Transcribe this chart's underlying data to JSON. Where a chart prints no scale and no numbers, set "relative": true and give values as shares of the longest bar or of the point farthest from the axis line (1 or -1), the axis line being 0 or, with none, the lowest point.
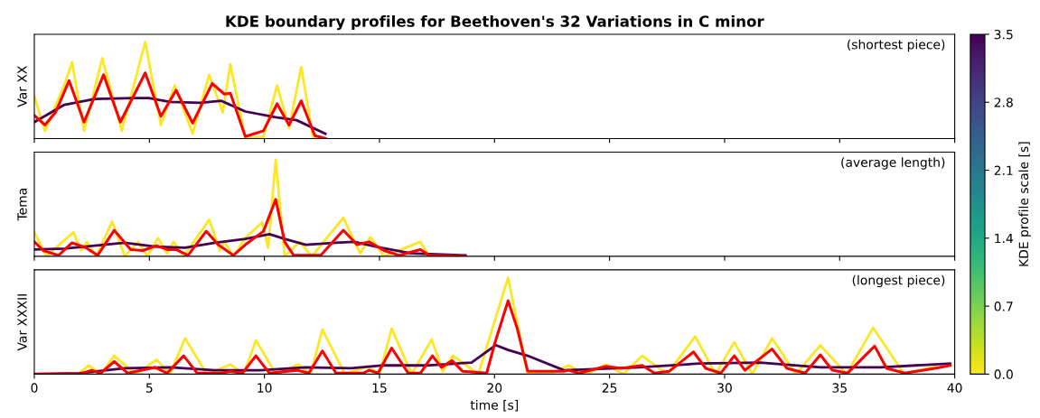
{
  "chart_data": [
    {
      "type": "line",
      "title": "KDE boundary profiles for Beethoven's 32 Variations in C minor",
      "ylabel": "Var XX",
      "relative": true,
      "xlim": [
        0,
        40
      ],
      "xticks": [
        0,
        5,
        10,
        15,
        20,
        25,
        30,
        35,
        40
      ],
      "tick_labels": false,
      "annotations": [
        "(shortest piece)"
      ],
      "clabel": "KDE profile scale [s]",
      "clim": [
        0,
        3.5
      ],
      "cticks": [
        {
          "value": 0,
          "label": "0.0"
        },
        {
          "value": 0.7,
          "label": "0.7"
        },
        {
          "value": 1.4,
          "label": "1.4"
        },
        {
          "value": 2.1,
          "label": "2.1"
        },
        {
          "value": 2.8,
          "label": "2.8"
        },
        {
          "value": 3.5,
          "label": "3.5"
        }
      ],
      "series": [
        {
          "color": "#fde725",
          "x": [
            0,
            0.46,
            1.3,
            1.64,
            2.16,
            2.95,
            3.8,
            4.82,
            5.5,
            6.1,
            6.88,
            7.6,
            8.19,
            8.52,
            9.17,
            9.96,
            10.55,
            11.07,
            11.6,
            12.12,
            12.65
          ],
          "values": [
            0.44,
            0.08,
            0.55,
            0.79,
            0.08,
            0.83,
            0.08,
            1.0,
            0.14,
            0.55,
            0.05,
            0.66,
            0.27,
            0.77,
            0,
            0.02,
            0.55,
            0.11,
            0.74,
            0,
            0
          ]
        },
        {
          "color": "#440154",
          "x": [
            0,
            1.31,
            2.62,
            4.33,
            4.98,
            5.9,
            7.21,
            8.13,
            9.17,
            10.49,
            11.4,
            12.65
          ],
          "values": [
            0.17,
            0.35,
            0.41,
            0.42,
            0.42,
            0.38,
            0.37,
            0.39,
            0.28,
            0.22,
            0.19,
            0.05
          ]
        },
        {
          "color": "#ff0000",
          "x": [
            0,
            0.46,
            0.92,
            1.51,
            2.16,
            3.01,
            3.74,
            4.82,
            5.5,
            6.16,
            6.88,
            7.73,
            8.26,
            8.52,
            9.17,
            9.7,
            9.96,
            10.55,
            11.07,
            11.6,
            12.19,
            12.65
          ],
          "values": [
            0.24,
            0.14,
            0.27,
            0.6,
            0.17,
            0.66,
            0.17,
            0.68,
            0.23,
            0.5,
            0.16,
            0.57,
            0.46,
            0.47,
            0.02,
            0.06,
            0.08,
            0.36,
            0.14,
            0.39,
            0.03,
            0
          ]
        }
      ]
    },
    {
      "type": "line",
      "ylabel": "Tema",
      "relative": true,
      "xlim": [
        0,
        40
      ],
      "xticks": [
        0,
        5,
        10,
        15,
        20,
        25,
        30,
        35,
        40
      ],
      "tick_labels": false,
      "annotations": [
        "(average length)"
      ],
      "series": [
        {
          "color": "#fde725",
          "x": [
            0,
            0.52,
            1.7,
            2.03,
            2.29,
            2.69,
            3.38,
            3.93,
            4.52,
            4.91,
            5.37,
            5.77,
            6.05,
            6.49,
            7.6,
            8.06,
            8.26,
            8.65,
            9.17,
            9.9,
            10.16,
            10.49,
            10.88,
            11.53,
            12.06,
            13.43,
            14.16,
            14.61,
            15.2,
            16.78,
            17.17,
            18.74
          ],
          "values": [
            0.25,
            0,
            0.25,
            0.06,
            0.15,
            0,
            0.36,
            0,
            0.15,
            0,
            0.19,
            0.03,
            0.15,
            0,
            0.38,
            0.06,
            0.15,
            0,
            0.19,
            0.35,
            0.09,
            1.0,
            0,
            0.15,
            0,
            0.4,
            0.03,
            0.2,
            0,
            0.15,
            0,
            0
          ]
        },
        {
          "color": "#440154",
          "x": [
            0,
            1.31,
            2.62,
            3.93,
            5.24,
            6.55,
            7.86,
            9.17,
            10.22,
            10.88,
            11.8,
            13.11,
            13.89,
            15.07,
            16.38,
            18.74
          ],
          "values": [
            0.07,
            0.08,
            0.11,
            0.14,
            0.1,
            0.09,
            0.14,
            0.18,
            0.23,
            0.18,
            0.12,
            0.14,
            0.15,
            0.09,
            0.03,
            0.01
          ]
        },
        {
          "color": "#ff0000",
          "x": [
            0,
            0.39,
            1.05,
            1.64,
            2.23,
            2.75,
            3.47,
            4.19,
            4.72,
            5.31,
            5.77,
            6.16,
            6.68,
            7.47,
            7.99,
            8.65,
            9.17,
            9.96,
            10.49,
            10.88,
            11.27,
            12.45,
            13.43,
            14.02,
            14.55,
            15.2,
            15.86,
            16.78,
            17.17,
            18.74
          ],
          "values": [
            0.15,
            0.06,
            0.01,
            0.14,
            0.09,
            0.01,
            0.27,
            0.07,
            0.06,
            0.11,
            0.07,
            0.07,
            0.01,
            0.26,
            0.12,
            0.01,
            0.12,
            0.26,
            0.59,
            0.15,
            0.01,
            0.01,
            0.27,
            0.12,
            0.15,
            0.06,
            0.01,
            0.07,
            0.01,
            0
          ]
        }
      ]
    },
    {
      "type": "line",
      "ylabel": "Var XXXII",
      "xlabel": "time [s]",
      "relative": true,
      "xlim": [
        0,
        40
      ],
      "xticks": [
        0,
        5,
        10,
        15,
        20,
        25,
        30,
        35,
        40
      ],
      "tick_labels": "x",
      "annotations": [
        "(longest piece)"
      ],
      "series": [
        {
          "color": "#fde725",
          "x": [
            0,
            1.9,
            2.36,
            2.9,
            3.47,
            4.4,
            5.31,
            5.9,
            6.55,
            7.5,
            8.52,
            9.1,
            9.63,
            10.5,
            11.47,
            12.0,
            12.52,
            13.5,
            14.48,
            15.0,
            15.53,
            16.4,
            17.27,
            17.75,
            18.19,
            19.3,
            20.59,
            21.44,
            22.4,
            23.21,
            24.0,
            24.85,
            25.6,
            26.42,
            27.5,
            28.72,
            29.6,
            30.42,
            31.2,
            32.06,
            33.1,
            34.16,
            35.3,
            36.45,
            37.8,
            39.14
          ],
          "values": [
            0,
            0,
            0.09,
            0,
            0.19,
            0,
            0.15,
            0,
            0.37,
            0,
            0.1,
            0,
            0.35,
            0,
            0.1,
            0,
            0.46,
            0,
            0.08,
            0,
            0.47,
            0,
            0.36,
            0.03,
            0.19,
            0,
            1.0,
            0,
            0,
            0.09,
            0,
            0.1,
            0,
            0.19,
            0,
            0.39,
            0,
            0.33,
            0,
            0.37,
            0,
            0.3,
            0,
            0.48,
            0,
            0.08
          ]
        },
        {
          "color": "#440154",
          "x": [
            0,
            1.97,
            3.93,
            5.9,
            7.86,
            9.83,
            11.8,
            13.76,
            15.07,
            17.04,
            19.0,
            20.05,
            20.59,
            21.44,
            23.02,
            26.29,
            28.91,
            31.54,
            34.16,
            36.78,
            39.8
          ],
          "values": [
            0,
            0.01,
            0.06,
            0.07,
            0.04,
            0.04,
            0.07,
            0.06,
            0.09,
            0.09,
            0.12,
            0.3,
            0.25,
            0.19,
            0.04,
            0.07,
            0.11,
            0.12,
            0.07,
            0.07,
            0.11
          ]
        },
        {
          "color": "#ff0000",
          "x": [
            0,
            1.97,
            2.49,
            2.88,
            3.47,
            4.06,
            5.24,
            5.77,
            6.49,
            7.08,
            8.13,
            8.52,
            9.04,
            9.63,
            10.22,
            11.4,
            11.93,
            12.52,
            13.11,
            14.29,
            14.55,
            14.94,
            15.53,
            16.25,
            16.78,
            17.3,
            17.69,
            18.15,
            18.61,
            19.66,
            20.0,
            20.59,
            20.99,
            21.44,
            23.02,
            23.21,
            23.67,
            24.85,
            25.51,
            26.42,
            26.95,
            27.6,
            28.65,
            29.18,
            29.83,
            30.42,
            30.88,
            32.06,
            32.71,
            33.5,
            34.16,
            34.68,
            35.34,
            36.52,
            37.04,
            37.83,
            39.14,
            39.8
          ],
          "values": [
            0,
            0,
            0.04,
            0.01,
            0.13,
            0.01,
            0.07,
            0.01,
            0.19,
            0.01,
            0.01,
            0.03,
            0.01,
            0.19,
            0.01,
            0.04,
            0.01,
            0.24,
            0.01,
            0.01,
            0.04,
            0.01,
            0.27,
            0.01,
            0.01,
            0.19,
            0.07,
            0.14,
            0.03,
            0.01,
            0.31,
            0.76,
            0.47,
            0.03,
            0.03,
            0.04,
            0.01,
            0.08,
            0.06,
            0.09,
            0.01,
            0.03,
            0.23,
            0.06,
            0.01,
            0.19,
            0.04,
            0.26,
            0.06,
            0.01,
            0.2,
            0.04,
            0.01,
            0.29,
            0.06,
            0.01,
            0.06,
            0.09
          ]
        }
      ]
    }
  ]
}
